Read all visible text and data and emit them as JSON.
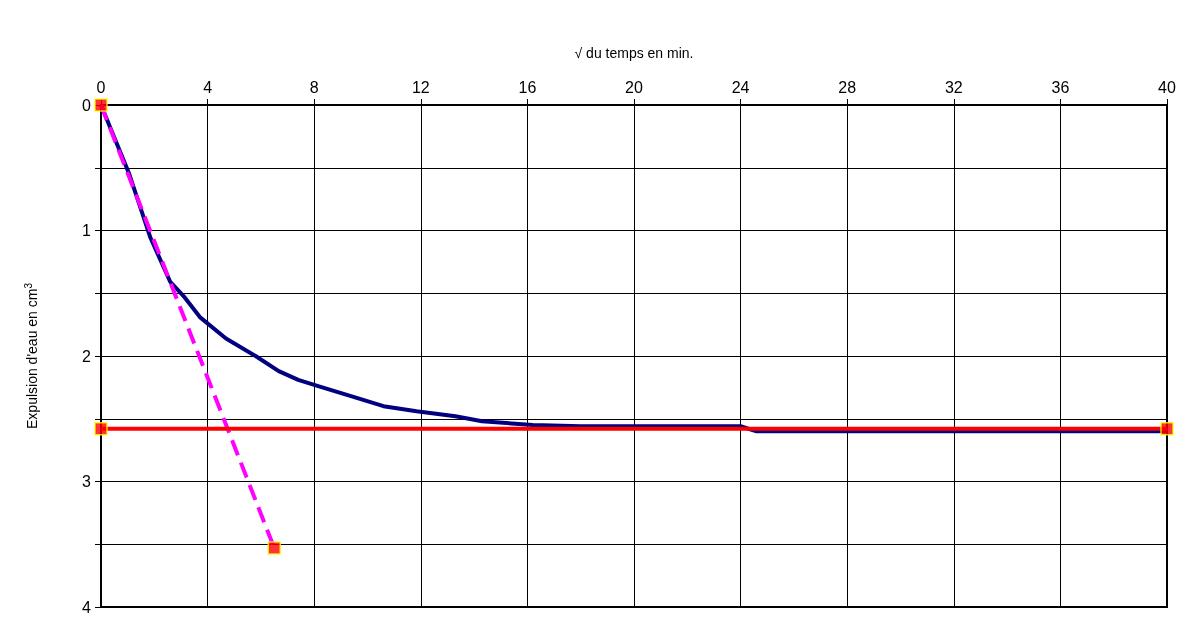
{
  "chart_data": {
    "type": "line",
    "xlabel": "√ du temps en min.",
    "ylabel": "Expulsion d'eau en cm$^{3}$",
    "xlim": [
      0,
      40
    ],
    "xticks": [
      0,
      4,
      8,
      12,
      16,
      20,
      24,
      28,
      32,
      36,
      40
    ],
    "ylim": [
      4,
      0
    ],
    "yticks": [
      0,
      {
        "value": 0.5,
        "label": null
      },
      1,
      {
        "value": 1.5,
        "label": null
      },
      2,
      {
        "value": 2.5,
        "label": null
      },
      3,
      {
        "value": 3.5,
        "label": null
      },
      4
    ],
    "grid": true,
    "series": [
      {
        "color": "#000080",
        "line_style": "solid",
        "marker": "none",
        "x": [
          0,
          1.06,
          1.86,
          2.6,
          3.09,
          3.71,
          4.69,
          5.8,
          6.67,
          7.4,
          8.15,
          9.38,
          10.6,
          11.84,
          13.3,
          14.3,
          16.2,
          18,
          24,
          24.6,
          32,
          40
        ],
        "values": [
          0,
          0.55,
          1.06,
          1.41,
          1.52,
          1.69,
          1.86,
          2,
          2.12,
          2.19,
          2.24,
          2.32,
          2.4,
          2.44,
          2.48,
          2.52,
          2.55,
          2.56,
          2.56,
          2.6,
          2.6,
          2.6
        ]
      },
      {
        "color": "#ff00ff",
        "line_style": "dashed",
        "marker": "none",
        "x": [
          0,
          6.5
        ],
        "values": [
          0,
          3.53
        ]
      },
      {
        "color": "#ff0000",
        "line_style": "solid",
        "marker": "none",
        "x": [
          0,
          40
        ],
        "values": [
          2.58,
          2.58
        ]
      },
      {
        "type": "scatter",
        "color": "#ff0000",
        "marker": "square",
        "x": [
          0,
          6.5,
          0,
          40
        ],
        "values": [
          0,
          3.53,
          2.58,
          2.58
        ]
      }
    ]
  }
}
